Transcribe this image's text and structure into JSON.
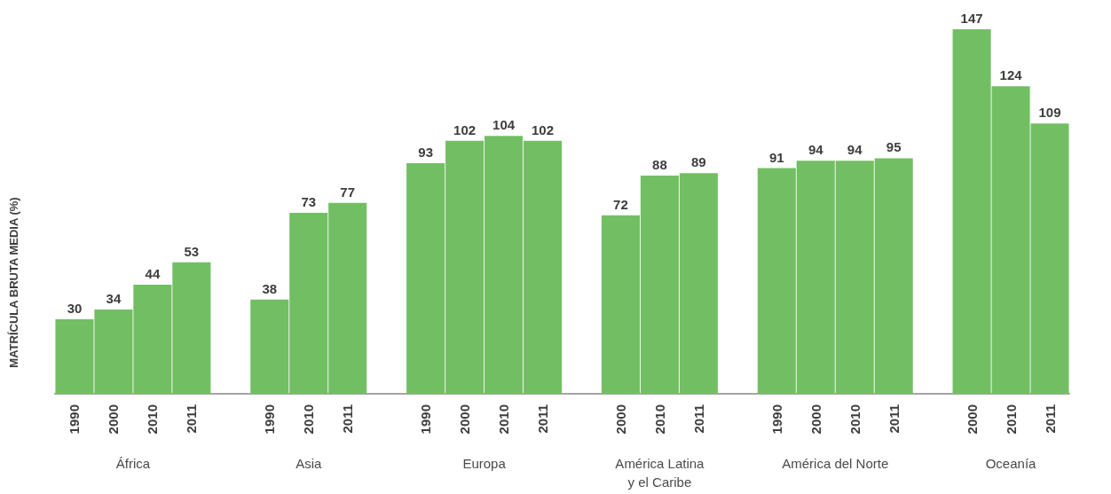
{
  "chart_data": {
    "type": "bar",
    "ylabel": "MATRÍCULA BRUTA MEDIA (%)",
    "categories": [
      "1990",
      "2000",
      "2010",
      "2011",
      null,
      "1990",
      "2010",
      "2011",
      null,
      "1990",
      "2000",
      "2010",
      "2011",
      null,
      "2000",
      "2010",
      "2011",
      null,
      "1990",
      "2000",
      "2010",
      "2011",
      null,
      "2000",
      "2010",
      "2011"
    ],
    "values": [
      30,
      34,
      44,
      53,
      null,
      38,
      73,
      77,
      null,
      93,
      102,
      104,
      102,
      null,
      72,
      88,
      89,
      null,
      91,
      94,
      94,
      95,
      null,
      147,
      124,
      109
    ],
    "color": "#72bf63",
    "data_labels": true,
    "tick_labels": "x",
    "annotations": [
      "África",
      "Asia",
      "Europa",
      "América Latina\ny el Caribe",
      "América del Norte",
      "Oceanía"
    ]
  }
}
